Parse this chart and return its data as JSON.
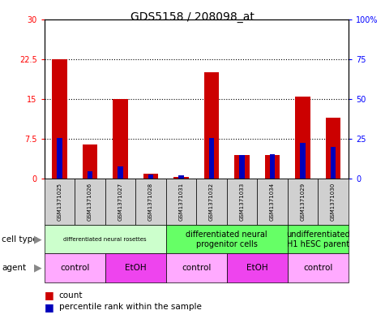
{
  "title": "GDS5158 / 208098_at",
  "samples": [
    "GSM1371025",
    "GSM1371026",
    "GSM1371027",
    "GSM1371028",
    "GSM1371031",
    "GSM1371032",
    "GSM1371033",
    "GSM1371034",
    "GSM1371029",
    "GSM1371030"
  ],
  "count_values": [
    22.5,
    6.5,
    15.0,
    1.0,
    0.3,
    20.0,
    4.5,
    4.5,
    15.5,
    11.5
  ],
  "percentile_values": [
    25.5,
    4.5,
    7.5,
    2.5,
    2.0,
    25.5,
    15.0,
    15.5,
    22.5,
    20.0
  ],
  "ylim_left": [
    0,
    30
  ],
  "ylim_right": [
    0,
    100
  ],
  "yticks_left": [
    0,
    7.5,
    15,
    22.5,
    30
  ],
  "yticks_right": [
    0,
    25,
    50,
    75,
    100
  ],
  "ytick_labels_left": [
    "0",
    "7.5",
    "15",
    "22.5",
    "30"
  ],
  "ytick_labels_right": [
    "0",
    "25",
    "50",
    "75",
    "100%"
  ],
  "bar_color_red": "#cc0000",
  "bar_color_blue": "#0000bb",
  "cell_type_groups": [
    {
      "label": "differentiated neural rosettes",
      "start": 0,
      "end": 4,
      "color": "#ccffcc"
    },
    {
      "label": "differentiated neural\nprogenitor cells",
      "start": 4,
      "end": 8,
      "color": "#66ff66"
    },
    {
      "label": "undifferentiated\nH1 hESC parent",
      "start": 8,
      "end": 10,
      "color": "#66ff66"
    }
  ],
  "agent_groups": [
    {
      "label": "control",
      "start": 0,
      "end": 2,
      "color": "#ffaaff"
    },
    {
      "label": "EtOH",
      "start": 2,
      "end": 4,
      "color": "#ee44ee"
    },
    {
      "label": "control",
      "start": 4,
      "end": 6,
      "color": "#ffaaff"
    },
    {
      "label": "EtOH",
      "start": 6,
      "end": 8,
      "color": "#ee44ee"
    },
    {
      "label": "control",
      "start": 8,
      "end": 10,
      "color": "#ffaaff"
    }
  ],
  "cell_type_label": "cell type",
  "agent_label": "agent",
  "legend_count": "count",
  "legend_percentile": "percentile rank within the sample",
  "sample_bg_color": "#d0d0d0",
  "plot_bg": "#ffffff"
}
